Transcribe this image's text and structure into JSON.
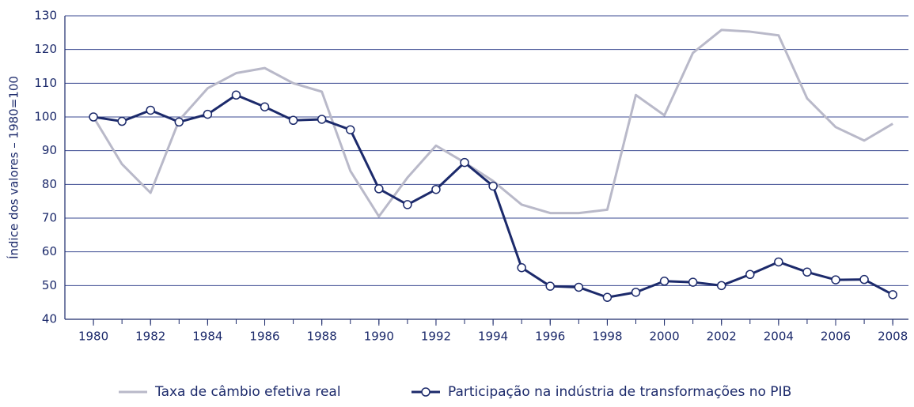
{
  "chart_data": {
    "type": "line",
    "y_label": "Índice dos valores – 1980=100",
    "x": [
      1980,
      1981,
      1982,
      1983,
      1984,
      1985,
      1986,
      1987,
      1988,
      1989,
      1990,
      1991,
      1992,
      1993,
      1994,
      1995,
      1996,
      1997,
      1998,
      1999,
      2000,
      2001,
      2002,
      2003,
      2004,
      2005,
      2006,
      2007,
      2008
    ],
    "series": [
      {
        "name": "Taxa de câmbio efetiva real",
        "color": "#b9b9c9",
        "markers": false,
        "values": [
          100,
          86,
          77.5,
          99,
          108.5,
          113,
          114.5,
          110,
          107.5,
          84,
          70.5,
          82,
          91.5,
          86.5,
          81,
          74,
          71.5,
          71.5,
          72.5,
          106.5,
          100.5,
          119,
          125.8,
          125.3,
          124.2,
          105.5,
          97,
          93,
          98
        ]
      },
      {
        "name": "Participação na indústria de transformações no PIB",
        "color": "#1c2a6b",
        "markers": true,
        "values": [
          100,
          98.7,
          102,
          98.5,
          100.8,
          106.5,
          103,
          99,
          99.3,
          96.2,
          78.7,
          74,
          78.5,
          86.5,
          79.5,
          55.3,
          49.8,
          49.5,
          46.5,
          48,
          51.3,
          51,
          50,
          53.3,
          57,
          54,
          51.7,
          51.8,
          47.3
        ]
      }
    ],
    "xlim": [
      1979,
      2008.55
    ],
    "xticks": [
      1980,
      1982,
      1984,
      1986,
      1988,
      1990,
      1992,
      1994,
      1996,
      1998,
      2000,
      2002,
      2004,
      2006,
      2008
    ],
    "ylim": [
      40,
      130
    ],
    "yticks": [
      40,
      50,
      60,
      70,
      80,
      90,
      100,
      110,
      120,
      130
    ],
    "grid": true
  }
}
